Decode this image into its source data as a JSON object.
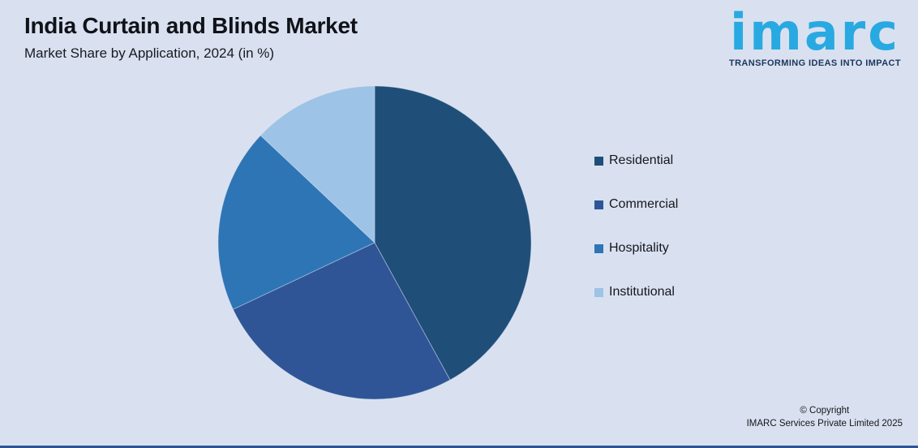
{
  "header": {
    "title": "India Curtain and Blinds Market",
    "subtitle": "Market Share by Application, 2024 (in %)"
  },
  "logo": {
    "brand": "imarc",
    "tagline": "TRANSFORMING IDEAS INTO IMPACT",
    "brand_color": "#29A9E1",
    "tagline_color": "#1C355E"
  },
  "chart_data": {
    "type": "pie",
    "title": "India Curtain and Blinds Market",
    "subtitle": "Market Share by Application, 2024 (in %)",
    "start_angle_deg_from_12_oclock": 0,
    "direction": "clockwise",
    "values_labeled_on_chart": false,
    "legend_position": "right",
    "segments": [
      {
        "label": "Residential",
        "value_pct": 42,
        "color": "#1F4E79"
      },
      {
        "label": "Commercial",
        "value_pct": 26,
        "color": "#2F5597"
      },
      {
        "label": "Hospitality",
        "value_pct": 19,
        "color": "#2E75B6"
      },
      {
        "label": "Institutional",
        "value_pct": 13,
        "color": "#9DC3E6"
      }
    ]
  },
  "footer": {
    "copyright_line1": "© Copyright",
    "copyright_line2": "IMARC Services Private Limited 2025"
  },
  "colors": {
    "background": "#D9E1F0",
    "bottom_border": "#2D5591",
    "text": "#101218"
  }
}
